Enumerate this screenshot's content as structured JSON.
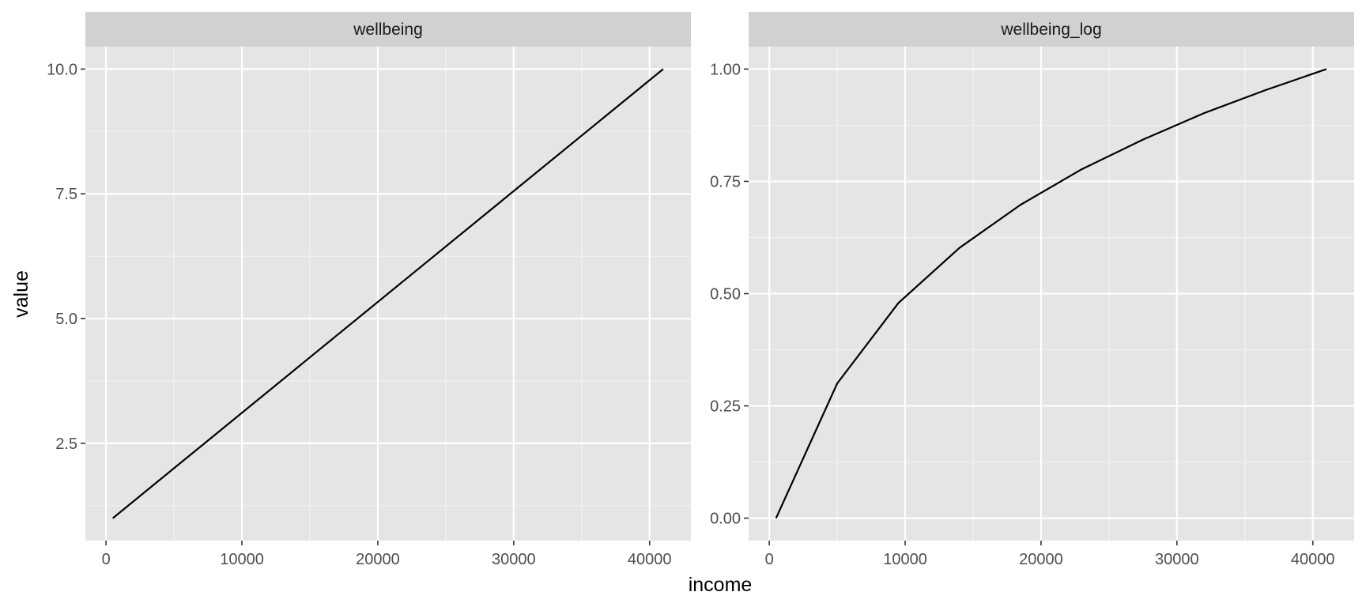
{
  "chart_data": {
    "type": "line",
    "xlabel": "income",
    "ylabel": "value",
    "grid": true,
    "panel_background": "#e5e5e5",
    "strip_background": "#d1d1d1",
    "line_color": "#000000",
    "panels": [
      {
        "title": "wellbeing",
        "xlim": [
          -1520,
          43040
        ],
        "ylim": [
          0.55,
          10.45
        ],
        "x_ticks": [
          0,
          10000,
          20000,
          30000,
          40000
        ],
        "x_tick_labels": [
          "0",
          "10000",
          "20000",
          "30000",
          "40000"
        ],
        "y_ticks": [
          2.5,
          5.0,
          7.5,
          10.0
        ],
        "y_tick_labels": [
          "2.5",
          "5.0",
          "7.5",
          "10.0"
        ],
        "x": [
          500,
          41000
        ],
        "y": [
          1.0,
          10.0
        ]
      },
      {
        "title": "wellbeing_log",
        "xlim": [
          -1520,
          43040
        ],
        "ylim": [
          -0.05,
          1.05
        ],
        "x_ticks": [
          0,
          10000,
          20000,
          30000,
          40000
        ],
        "x_tick_labels": [
          "0",
          "10000",
          "20000",
          "30000",
          "40000"
        ],
        "y_ticks": [
          0.0,
          0.25,
          0.5,
          0.75,
          1.0
        ],
        "y_tick_labels": [
          "0.00",
          "0.25",
          "0.50",
          "0.75",
          "1.00"
        ],
        "x": [
          500,
          5000,
          9500,
          14000,
          18500,
          23000,
          27500,
          32000,
          36500,
          41000
        ],
        "y": [
          0.0,
          0.3,
          0.479,
          0.602,
          0.698,
          0.777,
          0.843,
          0.902,
          0.953,
          1.0
        ]
      }
    ]
  }
}
